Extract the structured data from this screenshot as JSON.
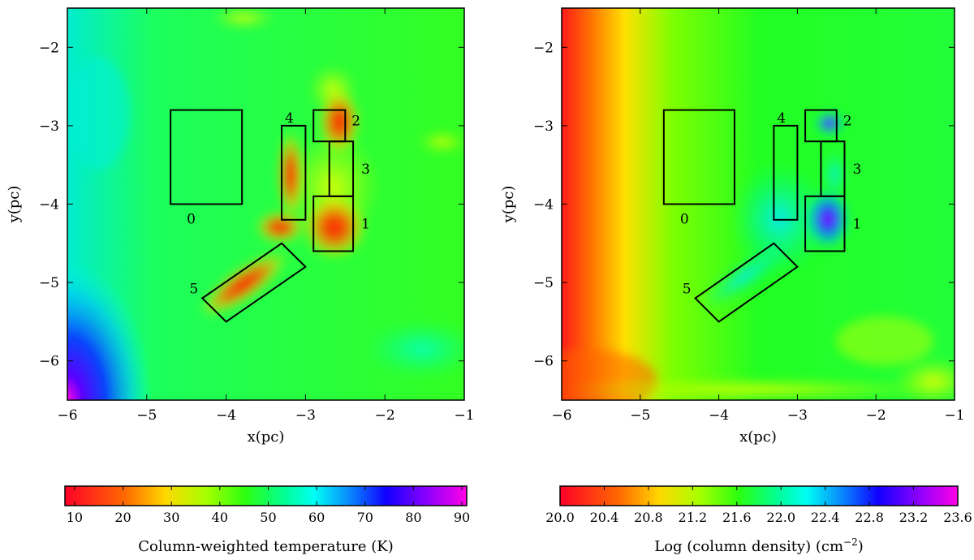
{
  "chart_data": [
    {
      "type": "heatmap",
      "title": "",
      "xlabel": "x(pc)",
      "ylabel": "y(pc)",
      "xlim": [
        -6,
        -1
      ],
      "ylim": [
        -6.5,
        -1.5
      ],
      "xticks": [
        "−6",
        "−5",
        "−4",
        "−3",
        "−2",
        "−1"
      ],
      "yticks": [
        "−2",
        "−3",
        "−4",
        "−5",
        "−6"
      ],
      "colormap": "gist_rainbow",
      "colorbar": {
        "label": "Column-weighted temperature (K)",
        "range": [
          8,
          91
        ],
        "ticks": [
          "10",
          "20",
          "30",
          "40",
          "50",
          "60",
          "70",
          "80",
          "90"
        ]
      },
      "regions": [
        {
          "label": "0",
          "x": [
            -4.7,
            -3.8
          ],
          "y": [
            -4.0,
            -2.8
          ]
        },
        {
          "label": "1",
          "x": [
            -2.9,
            -2.4
          ],
          "y": [
            -4.6,
            -3.9
          ]
        },
        {
          "label": "2",
          "x": [
            -2.9,
            -2.5
          ],
          "y": [
            -3.2,
            -2.8
          ]
        },
        {
          "label": "3",
          "x": [
            -2.7,
            -2.4
          ],
          "y": [
            -3.9,
            -3.2
          ]
        },
        {
          "label": "4",
          "x": [
            -3.3,
            -3.0
          ],
          "y": [
            -4.2,
            -3.0
          ]
        },
        {
          "label": "5",
          "corners": [
            [
              -4.3,
              -5.2
            ],
            [
              -4.0,
              -5.5
            ],
            [
              -3.0,
              -4.8
            ],
            [
              -3.3,
              -4.5
            ]
          ]
        }
      ]
    },
    {
      "type": "heatmap",
      "title": "",
      "xlabel": "x(pc)",
      "ylabel": "y(pc)",
      "xlim": [
        -6,
        -1
      ],
      "ylim": [
        -6.5,
        -1.5
      ],
      "xticks": [
        "−6",
        "−5",
        "−4",
        "−3",
        "−2",
        "−1"
      ],
      "yticks": [
        "−2",
        "−3",
        "−4",
        "−5",
        "−6"
      ],
      "colormap": "gist_rainbow",
      "colorbar": {
        "label": "Log (column density) (cm",
        "label_sup": "−2",
        "label_end": ")",
        "range": [
          20.0,
          23.6
        ],
        "ticks": [
          "20.0",
          "20.4",
          "20.8",
          "21.2",
          "21.6",
          "22.0",
          "22.4",
          "22.8",
          "23.2",
          "23.6"
        ]
      },
      "regions": [
        {
          "label": "0",
          "x": [
            -4.7,
            -3.8
          ],
          "y": [
            -4.0,
            -2.8
          ]
        },
        {
          "label": "1",
          "x": [
            -2.9,
            -2.4
          ],
          "y": [
            -4.6,
            -3.9
          ]
        },
        {
          "label": "2",
          "x": [
            -2.9,
            -2.5
          ],
          "y": [
            -3.2,
            -2.8
          ]
        },
        {
          "label": "3",
          "x": [
            -2.7,
            -2.4
          ],
          "y": [
            -3.9,
            -3.2
          ]
        },
        {
          "label": "4",
          "x": [
            -3.3,
            -3.0
          ],
          "y": [
            -4.2,
            -3.0
          ]
        },
        {
          "label": "5",
          "corners": [
            [
              -4.3,
              -5.2
            ],
            [
              -4.0,
              -5.5
            ],
            [
              -3.0,
              -4.8
            ],
            [
              -3.3,
              -4.5
            ]
          ]
        }
      ]
    }
  ]
}
